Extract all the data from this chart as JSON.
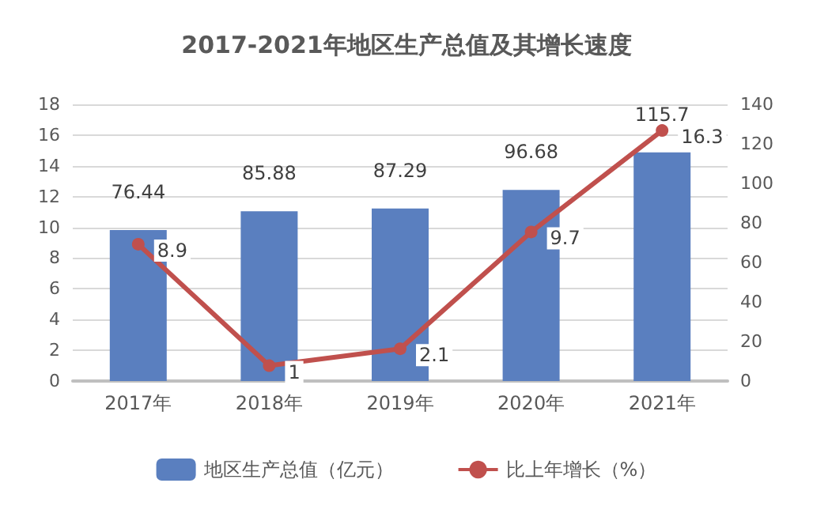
{
  "chart_data": {
    "type": "bar",
    "title": "2017-2021年地区生产总值及其增长速度",
    "categories": [
      "2017年",
      "2018年",
      "2019年",
      "2020年",
      "2021年"
    ],
    "series": [
      {
        "name": "地区生产总值（亿元）",
        "axis": "y2",
        "color": "#5a7fbf",
        "values": [
          76.44,
          85.88,
          87.29,
          96.68,
          115.7
        ]
      },
      {
        "name": "比上年增长（%）",
        "type": "line",
        "axis": "y",
        "color": "#c0504d",
        "values": [
          8.9,
          1,
          2.1,
          9.7,
          16.3
        ]
      }
    ],
    "ylim": [
      0,
      18
    ],
    "yticks": [
      0,
      2,
      4,
      6,
      8,
      10,
      12,
      14,
      16,
      18
    ],
    "y2lim": [
      0,
      140
    ],
    "y2ticks": [
      0,
      20,
      40,
      60,
      80,
      100,
      120,
      140
    ],
    "data_labels": true,
    "grid": "y",
    "legend": "bottom",
    "marker": "circle"
  }
}
